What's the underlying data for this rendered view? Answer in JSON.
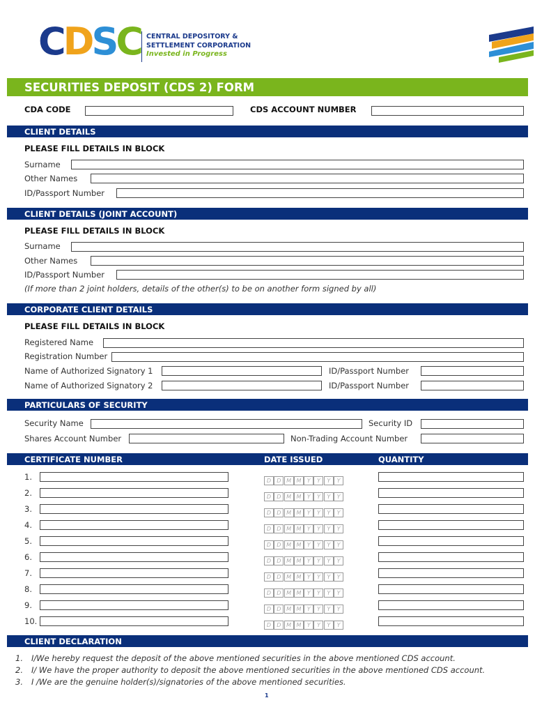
{
  "logo": {
    "letters": [
      "C",
      "D",
      "S",
      "C"
    ],
    "colors": [
      "#1b3a8c",
      "#f0a31b",
      "#2d8fd6",
      "#7ab51d"
    ],
    "line1": "CENTRAL DEPOSITORY &",
    "line2": "SETTLEMENT CORPORATION",
    "tagline": "Invested in Progress"
  },
  "title": "SECURITIES DEPOSIT (CDS 2) FORM",
  "top": {
    "cda_code": "CDA CODE",
    "cds_account": "CDS ACCOUNT NUMBER"
  },
  "client": {
    "header": "CLIENT DETAILS",
    "instruction": "PLEASE FILL DETAILS IN BLOCK",
    "surname": "Surname",
    "other_names": "Other Names",
    "id": "ID/Passport Number"
  },
  "joint": {
    "header": "CLIENT DETAILS (JOINT ACCOUNT)",
    "instruction": "PLEASE FILL DETAILS IN BLOCK",
    "surname": "Surname",
    "other_names": "Other Names",
    "id": "ID/Passport Number",
    "note": "(If more than 2 joint holders, details of the other(s) to be on another form signed by all)"
  },
  "corporate": {
    "header": "CORPORATE CLIENT DETAILS",
    "instruction": "PLEASE FILL DETAILS IN BLOCK",
    "registered_name": "Registered Name",
    "registration_number": "Registration Number",
    "signatory1": "Name of Authorized Signatory 1",
    "signatory2": "Name of Authorized Signatory 2",
    "id1": "ID/Passport Number",
    "id2": "ID/Passport Number"
  },
  "security": {
    "header": "PARTICULARS OF SECURITY",
    "security_name": "Security Name",
    "security_id": "Security ID",
    "shares_account": "Shares Account Number",
    "non_trading": "Non-Trading Account Number"
  },
  "certificates": {
    "col_cert": "CERTIFICATE NUMBER",
    "col_date": "DATE ISSUED",
    "col_qty": "QUANTITY",
    "date_placeholder": [
      "D",
      "D",
      "M",
      "M",
      "Y",
      "Y",
      "Y",
      "Y"
    ],
    "rows": [
      "1.",
      "2.",
      "3.",
      "4.",
      "5.",
      "6.",
      "7.",
      "8.",
      "9.",
      "10."
    ]
  },
  "declaration": {
    "header": "CLIENT DECLARATION",
    "items": [
      {
        "num": "1.",
        "text": "I/We hereby request the deposit of the above mentioned securities in the above mentioned CDS account."
      },
      {
        "num": "2.",
        "text": "I/ We have the proper authority to deposit the above mentioned securities in the above mentioned CDS account."
      },
      {
        "num": "3.",
        "text": "I /We are the genuine holder(s)/signatories of the above mentioned securities."
      }
    ]
  },
  "page_number": "1"
}
